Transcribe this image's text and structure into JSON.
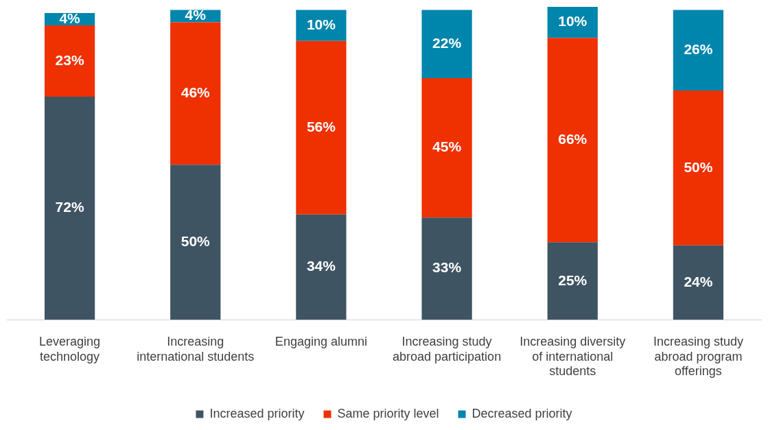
{
  "chart_data": {
    "type": "bar",
    "stacked": true,
    "categories": [
      "Leveraging technology",
      "Increasing international students",
      "Engaging alumni",
      "Increasing study abroad participation",
      "Increasing diversity of international students",
      "Increasing study abroad program offerings"
    ],
    "series": [
      {
        "name": "Increased priority",
        "color": "#3f5463",
        "values": [
          72,
          50,
          34,
          33,
          25,
          24
        ],
        "value_labels": [
          "72%",
          "50%",
          "34%",
          "33%",
          "25%",
          "24%"
        ]
      },
      {
        "name": "Same priority level",
        "color": "#ef3000",
        "values": [
          23,
          46,
          56,
          45,
          66,
          50
        ],
        "value_labels": [
          "23%",
          "46%",
          "56%",
          "45%",
          "66%",
          "50%"
        ]
      },
      {
        "name": "Decreased priority",
        "color": "#0085ad",
        "values": [
          4,
          4,
          10,
          22,
          10,
          26
        ],
        "value_labels": [
          "4%",
          "4%",
          "10%",
          "22%",
          "10%",
          "26%"
        ]
      }
    ],
    "tick_labels": "x",
    "grid": false,
    "legend": "bottom"
  }
}
